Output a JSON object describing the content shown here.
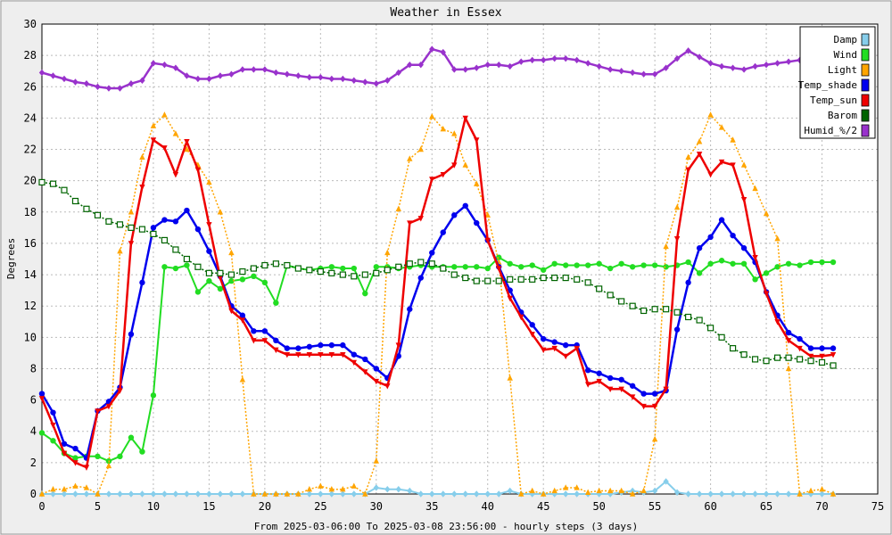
{
  "chart_data": {
    "type": "line",
    "title": "Weather in Essex",
    "xlabel": "From 2025-03-06:00 To 2025-03-08 23:56:00 - hourly steps (3 days)",
    "ylabel": "Degrees",
    "xlim": [
      0,
      75
    ],
    "ylim": [
      0,
      30
    ],
    "xticks": [
      0,
      5,
      10,
      15,
      20,
      25,
      30,
      35,
      40,
      45,
      50,
      55,
      60,
      65,
      70,
      75
    ],
    "yticks": [
      0,
      2,
      4,
      6,
      8,
      10,
      12,
      14,
      16,
      18,
      20,
      22,
      24,
      26,
      28,
      30
    ],
    "grid": true,
    "legend_position": "top-right",
    "series": [
      {
        "name": "Damp",
        "color": "#87ceeb",
        "marker": "diamond",
        "style": "solid",
        "width": 2,
        "values": [
          0,
          0,
          0,
          0,
          0,
          0,
          0,
          0,
          0,
          0,
          0,
          0,
          0,
          0,
          0,
          0,
          0,
          0,
          0,
          0,
          0,
          0,
          0,
          0,
          0,
          0,
          0,
          0,
          0,
          0,
          0.4,
          0.3,
          0.3,
          0.2,
          0,
          0,
          0,
          0,
          0,
          0,
          0,
          0,
          0.2,
          0,
          0,
          0,
          0,
          0,
          0,
          0,
          0,
          0,
          0.1,
          0.2,
          0.1,
          0.2,
          0.8,
          0.1,
          0,
          0,
          0,
          0,
          0,
          0,
          0,
          0,
          0,
          0,
          0,
          0,
          0,
          0
        ]
      },
      {
        "name": "Wind",
        "color": "#22dd22",
        "marker": "circle",
        "style": "solid",
        "width": 2,
        "values": [
          3.9,
          3.4,
          2.6,
          2.3,
          2.4,
          2.4,
          2.1,
          2.4,
          3.6,
          2.7,
          6.3,
          14.5,
          14.4,
          14.6,
          12.9,
          13.6,
          13.1,
          13.6,
          13.7,
          13.9,
          13.5,
          12.2,
          14.6,
          14.4,
          14.3,
          14.4,
          14.5,
          14.4,
          14.4,
          12.8,
          14.5,
          14.5,
          14.4,
          14.5,
          14.6,
          14.5,
          14.5,
          14.5,
          14.5,
          14.5,
          14.4,
          15.1,
          14.7,
          14.5,
          14.6,
          14.3,
          14.7,
          14.6,
          14.6,
          14.6,
          14.7,
          14.4,
          14.7,
          14.5,
          14.6,
          14.6,
          14.5,
          14.6,
          14.8,
          14.1,
          14.7,
          14.9,
          14.7,
          14.7,
          13.7,
          14.1,
          14.5,
          14.7,
          14.6,
          14.8,
          14.8,
          14.8
        ]
      },
      {
        "name": "Light",
        "color": "#ffa500",
        "marker": "triangle",
        "style": "dotted",
        "width": 1.5,
        "values": [
          0,
          0.3,
          0.3,
          0.5,
          0.4,
          0,
          1.8,
          15.5,
          18,
          21.5,
          23.5,
          24.2,
          23,
          22,
          21,
          19.9,
          18,
          15.4,
          7.3,
          0,
          0,
          0,
          0,
          0,
          0.3,
          0.5,
          0.3,
          0.3,
          0.5,
          0,
          2.1,
          15.4,
          18.2,
          21.4,
          22,
          24.1,
          23.3,
          23,
          21,
          19.8,
          17.8,
          14.8,
          7.4,
          0,
          0.2,
          0,
          0.2,
          0.4,
          0.4,
          0.1,
          0.2,
          0.2,
          0.2,
          0,
          0.2,
          3.5,
          15.8,
          18.3,
          21.5,
          22.5,
          24.2,
          23.4,
          22.6,
          21,
          19.5,
          17.9,
          16.3,
          8,
          0,
          0.2,
          0.3,
          0
        ]
      },
      {
        "name": "Temp_shade",
        "color": "#0000ee",
        "marker": "circle",
        "style": "solid",
        "width": 2.5,
        "values": [
          6.4,
          5.2,
          3.2,
          2.9,
          2.3,
          5.3,
          5.9,
          6.8,
          10.2,
          13.5,
          17,
          17.5,
          17.4,
          18.1,
          16.9,
          15.5,
          13.9,
          12,
          11.4,
          10.4,
          10.4,
          9.8,
          9.3,
          9.3,
          9.4,
          9.5,
          9.5,
          9.5,
          8.9,
          8.6,
          8,
          7.4,
          8.8,
          11.8,
          13.8,
          15.4,
          16.7,
          17.8,
          18.4,
          17.3,
          16.2,
          14.5,
          13,
          11.6,
          10.8,
          9.9,
          9.7,
          9.5,
          9.5,
          7.9,
          7.7,
          7.4,
          7.3,
          6.9,
          6.4,
          6.4,
          6.6,
          10.5,
          13.5,
          15.7,
          16.4,
          17.5,
          16.5,
          15.7,
          14.8,
          12.9,
          11.4,
          10.3,
          9.9,
          9.3,
          9.3,
          9.3
        ]
      },
      {
        "name": "Temp_sun",
        "color": "#ee0000",
        "marker": "triangle-down",
        "style": "solid",
        "width": 2.5,
        "values": [
          6.1,
          4.4,
          2.6,
          2,
          1.7,
          5.3,
          5.6,
          6.6,
          16,
          19.6,
          22.6,
          22.1,
          20.4,
          22.5,
          20.7,
          17.2,
          13.8,
          11.7,
          11.1,
          9.8,
          9.8,
          9.2,
          8.9,
          8.9,
          8.9,
          8.9,
          8.9,
          8.9,
          8.4,
          7.8,
          7.2,
          6.9,
          9.5,
          17.3,
          17.6,
          20.1,
          20.4,
          21,
          24,
          22.6,
          16.2,
          14.4,
          12.5,
          11.3,
          10.2,
          9.2,
          9.3,
          8.8,
          9.3,
          7,
          7.2,
          6.7,
          6.7,
          6.2,
          5.6,
          5.6,
          6.7,
          16.3,
          20.7,
          21.7,
          20.4,
          21.2,
          21,
          18.8,
          15.1,
          12.8,
          11,
          9.8,
          9.3,
          8.8,
          8.8,
          8.9
        ]
      },
      {
        "name": "Barom",
        "color": "#006400",
        "marker": "square",
        "style": "dotted",
        "width": 1.5,
        "values": [
          19.9,
          19.8,
          19.4,
          18.7,
          18.2,
          17.8,
          17.4,
          17.2,
          17,
          16.9,
          16.6,
          16.2,
          15.6,
          15,
          14.5,
          14.1,
          14.1,
          14,
          14.2,
          14.4,
          14.6,
          14.7,
          14.6,
          14.4,
          14.3,
          14.2,
          14.1,
          14,
          13.9,
          14,
          14.1,
          14.3,
          14.5,
          14.7,
          14.8,
          14.7,
          14.4,
          14,
          13.8,
          13.6,
          13.6,
          13.6,
          13.7,
          13.7,
          13.7,
          13.8,
          13.8,
          13.8,
          13.7,
          13.5,
          13.1,
          12.7,
          12.3,
          12,
          11.7,
          11.8,
          11.8,
          11.6,
          11.3,
          11.1,
          10.6,
          10,
          9.3,
          8.9,
          8.6,
          8.5,
          8.7,
          8.7,
          8.6,
          8.5,
          8.4,
          8.2
        ]
      },
      {
        "name": "Humid_%/2",
        "color": "#9932cc",
        "marker": "diamond",
        "style": "solid",
        "width": 2.5,
        "values": [
          26.9,
          26.7,
          26.5,
          26.3,
          26.2,
          26,
          25.9,
          25.9,
          26.2,
          26.4,
          27.5,
          27.4,
          27.2,
          26.7,
          26.5,
          26.5,
          26.7,
          26.8,
          27.1,
          27.1,
          27.1,
          26.9,
          26.8,
          26.7,
          26.6,
          26.6,
          26.5,
          26.5,
          26.4,
          26.3,
          26.2,
          26.4,
          26.9,
          27.4,
          27.4,
          28.4,
          28.2,
          27.1,
          27.1,
          27.2,
          27.4,
          27.4,
          27.3,
          27.6,
          27.7,
          27.7,
          27.8,
          27.8,
          27.7,
          27.5,
          27.3,
          27.1,
          27,
          26.9,
          26.8,
          26.8,
          27.2,
          27.8,
          28.3,
          27.9,
          27.5,
          27.3,
          27.2,
          27.1,
          27.3,
          27.4,
          27.5,
          27.6,
          27.7,
          27.8,
          27.9,
          27.9
        ]
      }
    ]
  }
}
